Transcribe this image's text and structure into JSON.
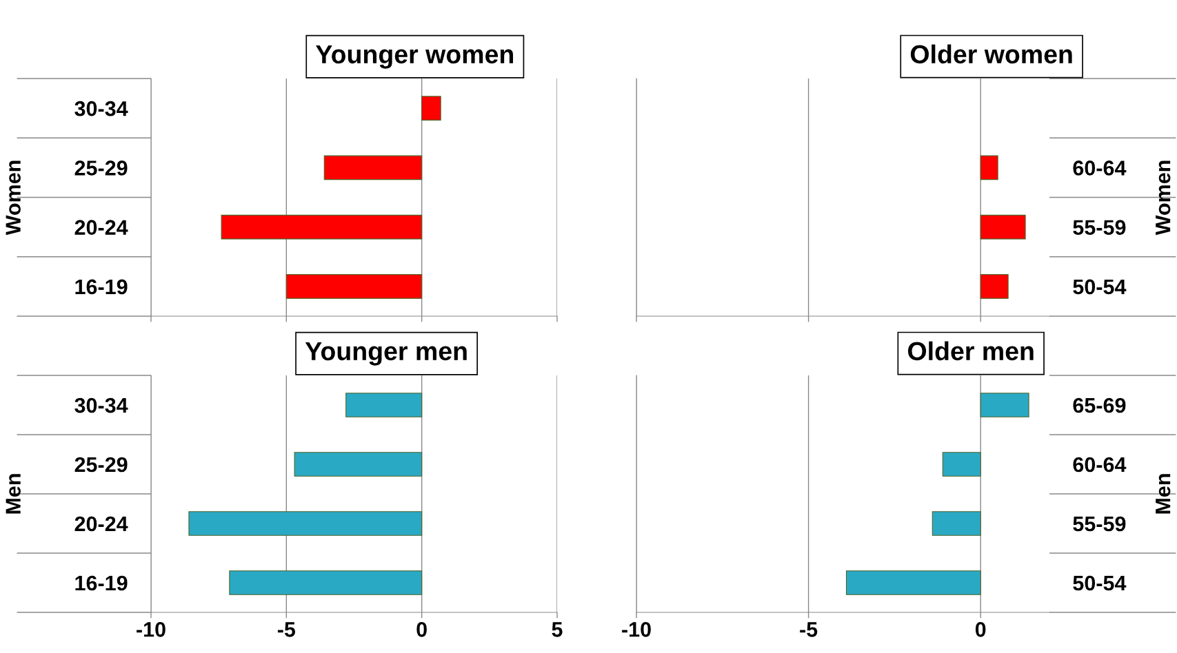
{
  "chart_data": [
    {
      "type": "bar",
      "orientation": "horizontal",
      "title": "Younger women",
      "ylabel": "Women",
      "categories": [
        "30-34",
        "25-29",
        "20-24",
        "16-19"
      ],
      "values": [
        0.7,
        -3.6,
        -7.4,
        -5.0
      ],
      "color": "#ff0000",
      "xlim": [
        -10,
        5
      ],
      "xticks": [
        -10,
        -5,
        0,
        5
      ],
      "grid": "x",
      "tick_labels": "y"
    },
    {
      "type": "bar",
      "orientation": "horizontal",
      "title": "Younger men",
      "ylabel": "Men",
      "categories": [
        "30-34",
        "25-29",
        "20-24",
        "16-19"
      ],
      "values": [
        -2.8,
        -4.7,
        -8.6,
        -7.1
      ],
      "color": "#2aa9c4",
      "xlim": [
        -10,
        5
      ],
      "xticks": [
        -10,
        -5,
        0,
        5
      ],
      "grid": "x"
    },
    {
      "type": "bar",
      "orientation": "horizontal",
      "title": "Older women",
      "ylabel": "Women",
      "categories": [
        null,
        "60-64",
        "55-59",
        "50-54"
      ],
      "values": [
        null,
        0.5,
        1.3,
        0.8
      ],
      "color": "#ff0000",
      "xlim": [
        -10,
        2
      ],
      "xticks": [
        -10,
        -5,
        0
      ],
      "grid": "x",
      "tick_labels": "y"
    },
    {
      "type": "bar",
      "orientation": "horizontal",
      "title": "Older men",
      "ylabel": "Men",
      "categories": [
        "65-69",
        "60-64",
        "55-59",
        "50-54"
      ],
      "values": [
        1.4,
        -1.1,
        -1.4,
        -3.9
      ],
      "color": "#2aa9c4",
      "xlim": [
        -10,
        2
      ],
      "xticks": [
        -10,
        -5,
        0
      ],
      "grid": "x"
    }
  ]
}
